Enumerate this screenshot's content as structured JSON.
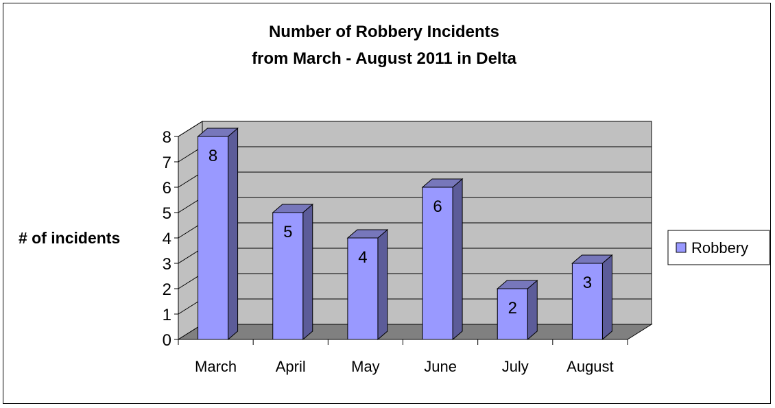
{
  "chart_data": {
    "type": "bar",
    "title_lines": [
      "Number of Robbery Incidents",
      "from March - August 2011 in Delta"
    ],
    "xlabel": "",
    "ylabel": "# of incidents",
    "categories": [
      "March",
      "April",
      "May",
      "June",
      "July",
      "August"
    ],
    "series": [
      {
        "name": "Robbery",
        "values": [
          8,
          5,
          4,
          6,
          2,
          3
        ],
        "color": "#9999ff"
      }
    ],
    "ylim": [
      0,
      8
    ],
    "yticks": [
      0,
      1,
      2,
      3,
      4,
      5,
      6,
      7,
      8
    ],
    "grid": true,
    "legend": "right",
    "data_labels": true,
    "style": "3d-column",
    "colors": {
      "wall": "#c0c0c0",
      "floor": "#808080",
      "bar_front": "#9999ff",
      "bar_top": "#7777bb",
      "bar_side": "#5c5c99",
      "outline": "#000000"
    }
  }
}
